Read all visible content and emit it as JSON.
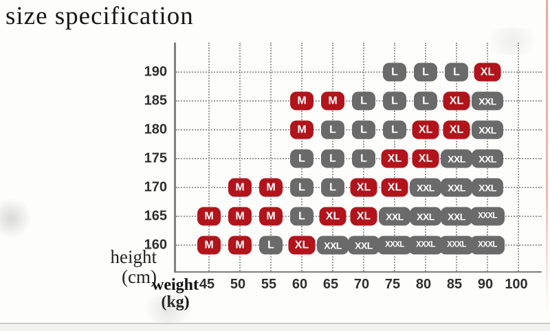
{
  "title": "size specification",
  "decor": {
    "right_border_color": "#eda7a2",
    "bottom_line_color": "#cccccc"
  },
  "chart_data": {
    "type": "scatter",
    "title": "size specification",
    "grid": "dotted",
    "legend": null,
    "x_axis": {
      "label": "weight (kg)",
      "label_lines": [
        "weight",
        "(kg)"
      ],
      "ticks": [
        "45",
        "50",
        "55",
        "60",
        "65",
        "70",
        "75",
        "80",
        "85",
        "90",
        "100"
      ]
    },
    "y_axis": {
      "label": "height (cm)",
      "label_lines": [
        "height",
        "(cm)"
      ],
      "ticks": [
        "190",
        "185",
        "180",
        "175",
        "170",
        "165",
        "160"
      ]
    },
    "size_colors": {
      "M": "#b2141b",
      "L": "#6a6a6a",
      "XL": "#b2141b",
      "XXL": "#6a6a6a",
      "XXXL": "#6a6a6a"
    },
    "rows": [
      {
        "height": "190",
        "cells": [
          {
            "weight": "75",
            "size": "L"
          },
          {
            "weight": "80",
            "size": "L"
          },
          {
            "weight": "85",
            "size": "L"
          },
          {
            "weight": "90",
            "size": "XL"
          }
        ]
      },
      {
        "height": "185",
        "cells": [
          {
            "weight": "60",
            "size": "M"
          },
          {
            "weight": "65",
            "size": "M"
          },
          {
            "weight": "70",
            "size": "L"
          },
          {
            "weight": "75",
            "size": "L"
          },
          {
            "weight": "80",
            "size": "L"
          },
          {
            "weight": "85",
            "size": "XL"
          },
          {
            "weight": "90",
            "size": "XXL"
          }
        ]
      },
      {
        "height": "180",
        "cells": [
          {
            "weight": "60",
            "size": "M"
          },
          {
            "weight": "65",
            "size": "L"
          },
          {
            "weight": "70",
            "size": "L"
          },
          {
            "weight": "75",
            "size": "L"
          },
          {
            "weight": "80",
            "size": "XL"
          },
          {
            "weight": "85",
            "size": "XL"
          },
          {
            "weight": "90",
            "size": "XXL"
          }
        ]
      },
      {
        "height": "175",
        "cells": [
          {
            "weight": "60",
            "size": "L"
          },
          {
            "weight": "65",
            "size": "L"
          },
          {
            "weight": "70",
            "size": "L"
          },
          {
            "weight": "75",
            "size": "XL"
          },
          {
            "weight": "80",
            "size": "XL"
          },
          {
            "weight": "85",
            "size": "XXL"
          },
          {
            "weight": "90",
            "size": "XXL"
          }
        ]
      },
      {
        "height": "170",
        "cells": [
          {
            "weight": "50",
            "size": "M"
          },
          {
            "weight": "55",
            "size": "M"
          },
          {
            "weight": "60",
            "size": "L"
          },
          {
            "weight": "65",
            "size": "L"
          },
          {
            "weight": "70",
            "size": "XL"
          },
          {
            "weight": "75",
            "size": "XL"
          },
          {
            "weight": "80",
            "size": "XXL"
          },
          {
            "weight": "85",
            "size": "XXL"
          },
          {
            "weight": "90",
            "size": "XXL"
          }
        ]
      },
      {
        "height": "165",
        "cells": [
          {
            "weight": "45",
            "size": "M"
          },
          {
            "weight": "50",
            "size": "M"
          },
          {
            "weight": "55",
            "size": "M"
          },
          {
            "weight": "60",
            "size": "L"
          },
          {
            "weight": "65",
            "size": "XL"
          },
          {
            "weight": "70",
            "size": "XL"
          },
          {
            "weight": "75",
            "size": "XXL"
          },
          {
            "weight": "80",
            "size": "XXL"
          },
          {
            "weight": "85",
            "size": "XXL"
          },
          {
            "weight": "90",
            "size": "XXXL"
          }
        ]
      },
      {
        "height": "160",
        "cells": [
          {
            "weight": "45",
            "size": "M"
          },
          {
            "weight": "50",
            "size": "M"
          },
          {
            "weight": "55",
            "size": "L"
          },
          {
            "weight": "60",
            "size": "XL"
          },
          {
            "weight": "65",
            "size": "XXL"
          },
          {
            "weight": "70",
            "size": "XXL"
          },
          {
            "weight": "75",
            "size": "XXXL"
          },
          {
            "weight": "80",
            "size": "XXXL"
          },
          {
            "weight": "85",
            "size": "XXXL"
          },
          {
            "weight": "90",
            "size": "XXXL"
          }
        ]
      }
    ]
  }
}
